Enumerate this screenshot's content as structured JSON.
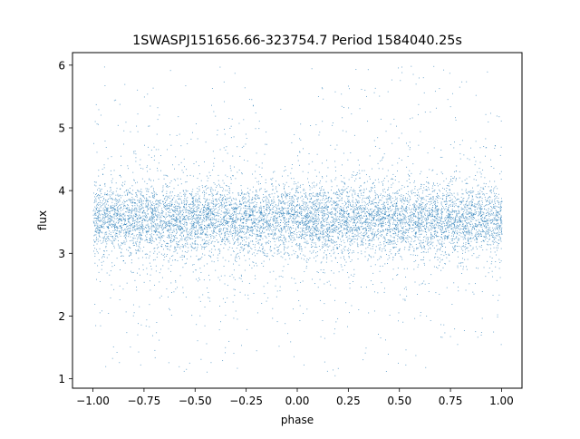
{
  "chart_data": {
    "type": "scatter",
    "title": "1SWASPJ151656.66-323754.7 Period 1584040.25s",
    "xlabel": "phase",
    "ylabel": "flux",
    "xlim": [
      -1.1,
      1.1
    ],
    "ylim": [
      0.85,
      6.2
    ],
    "x_ticks": [
      -1.0,
      -0.75,
      -0.5,
      -0.25,
      0.0,
      0.25,
      0.5,
      0.75,
      1.0
    ],
    "x_tick_labels": [
      "−1.00",
      "−0.75",
      "−0.50",
      "−0.25",
      "0.00",
      "0.25",
      "0.50",
      "0.75",
      "1.00"
    ],
    "y_ticks": [
      1,
      2,
      3,
      4,
      5,
      6
    ],
    "y_tick_labels": [
      "1",
      "2",
      "3",
      "4",
      "5",
      "6"
    ],
    "grid": false,
    "series": [
      {
        "color": "#1f77b4",
        "x_range": [
          -1.0,
          1.0
        ],
        "y_center": 3.55,
        "y_core_range": [
          2.8,
          4.3
        ],
        "y_full_range": [
          1.05,
          6.0
        ]
      }
    ]
  }
}
